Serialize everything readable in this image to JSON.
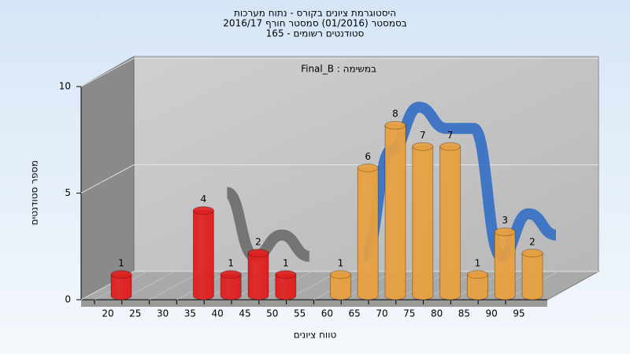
{
  "chart_data": {
    "type": "bar",
    "title_lines": [
      "היסטוגרמת ציונים בקורס - נתוח מערכות",
      "בסמסטר  (01/2016)  סמסטר חורף 2016/17",
      "סטודנטים רשומים - 165"
    ],
    "annotation": "Final_B : במשימה",
    "x_label": "טווח ציונים",
    "y_label": "מספר סטודנטים",
    "categories": [
      "20",
      "25",
      "30",
      "35",
      "40",
      "45",
      "50",
      "55",
      "60",
      "65",
      "70",
      "75",
      "80",
      "85",
      "90",
      "95"
    ],
    "values": [
      1,
      null,
      null,
      4,
      1,
      2,
      1,
      null,
      1,
      6,
      8,
      7,
      7,
      1,
      3,
      2
    ],
    "bar_colors": [
      "#e02020",
      null,
      null,
      "#e02020",
      "#e02020",
      "#e02020",
      "#e02020",
      null,
      "#e8a040",
      "#e8a040",
      "#e8a040",
      "#e8a040",
      "#e8a040",
      "#e8a040",
      "#e8a040",
      "#e8a040"
    ],
    "ribbon_colors": [
      "#707070",
      "#3a72c4"
    ],
    "ylim": [
      0,
      10
    ],
    "yticks": [
      0,
      5,
      10
    ],
    "grid": true
  }
}
